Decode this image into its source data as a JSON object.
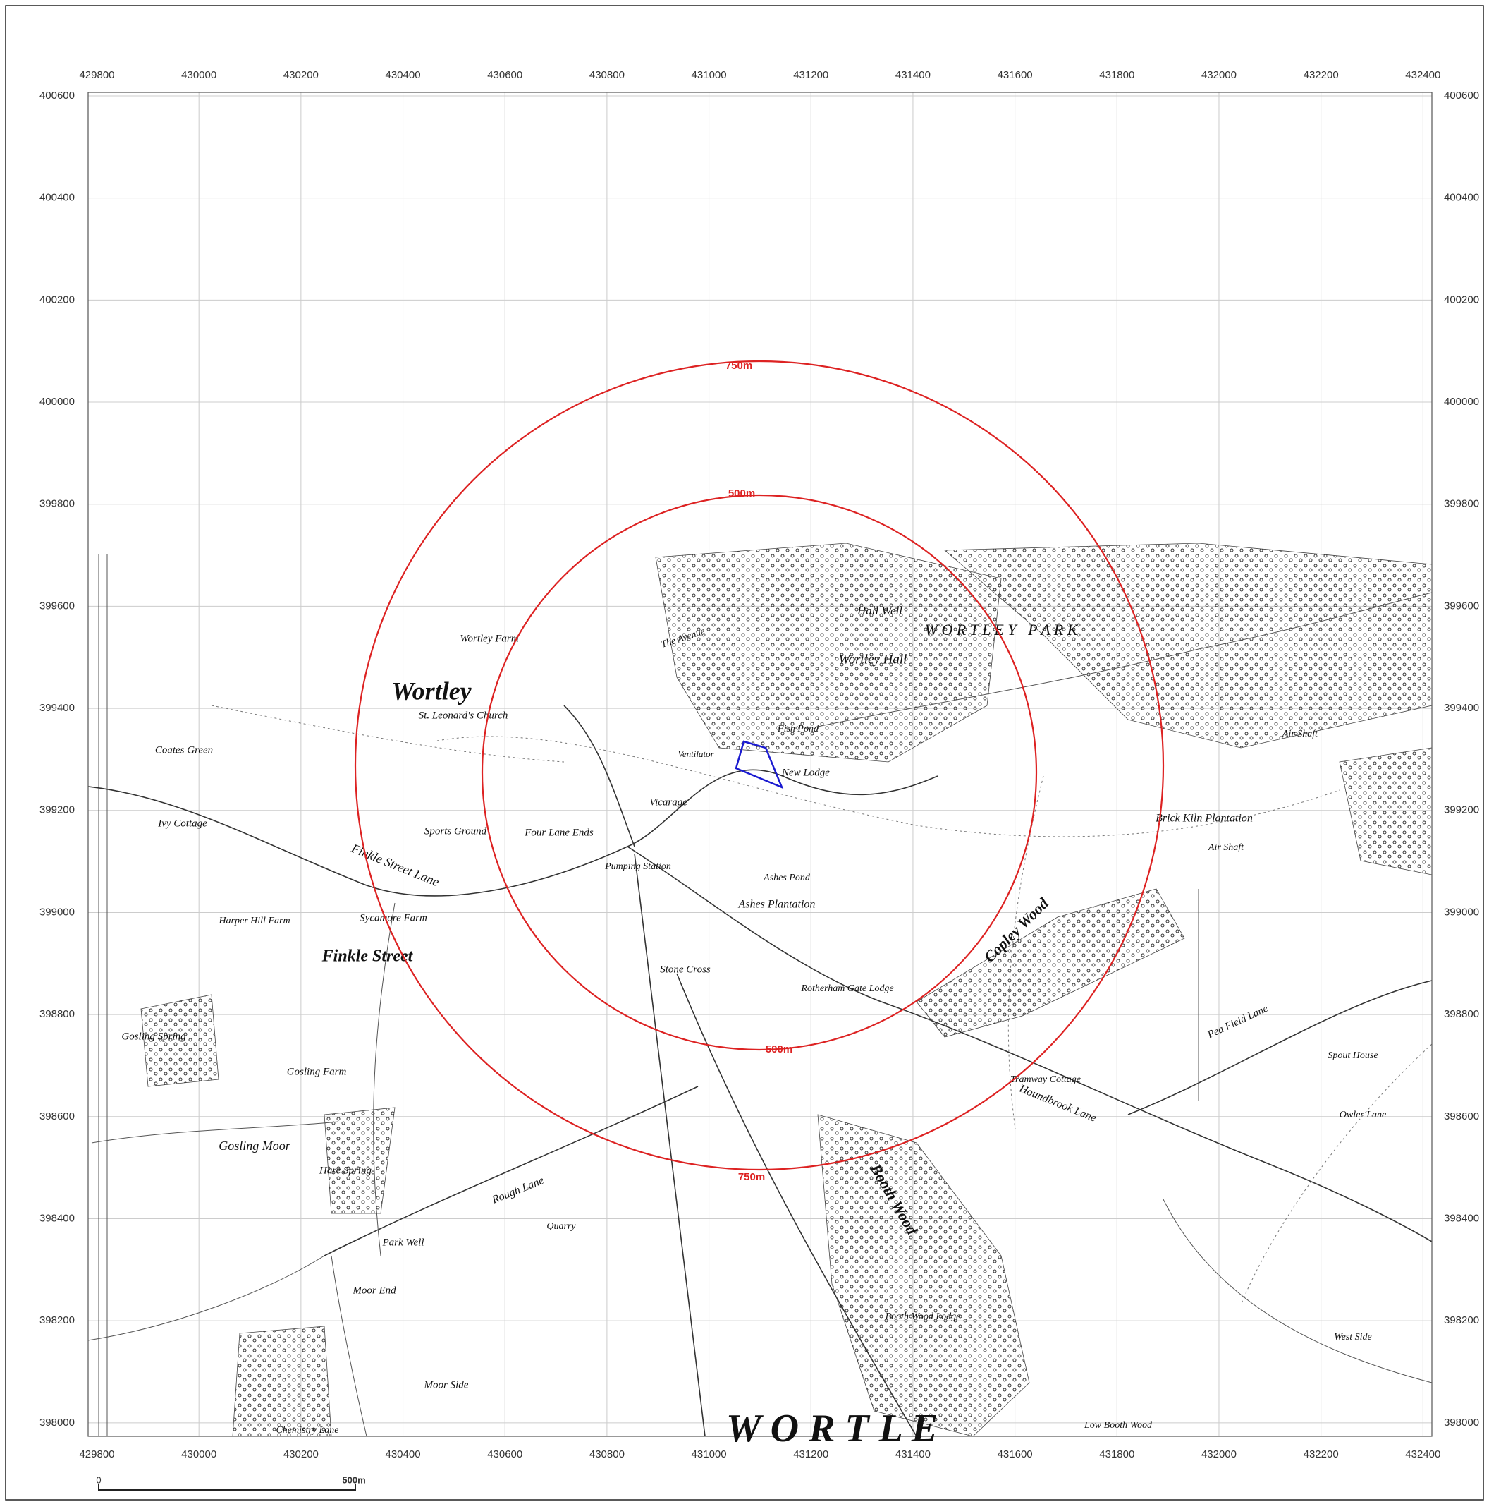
{
  "map": {
    "eastings": [
      429800,
      430000,
      430200,
      430400,
      430600,
      430800,
      431000,
      431200,
      431400,
      431600,
      431800,
      432000,
      432200,
      432400
    ],
    "northings": [
      400600,
      400400,
      400200,
      400000,
      399800,
      399600,
      399400,
      399200,
      399000,
      398800,
      398600,
      398400,
      398200,
      398000
    ],
    "buffer_labels": [
      "750m",
      "500m"
    ],
    "place_names": [
      "Wortley",
      "St. Leonard's Church",
      "Wortley Farm",
      "Hall Well",
      "Wortley Hall",
      "W O R T L E Y   P A R K",
      "Coates Green",
      "Ivy Cottage",
      "Finkle Street Lane",
      "Sports Ground",
      "Four Lane Ends",
      "Pumping Station",
      "Vicarage",
      "New Lodge",
      "Fish Pond",
      "Ashes Pond",
      "Ashes Plantation",
      "Sycamore Farm",
      "Harper Hill Farm",
      "Finkle Street",
      "Stone Cross",
      "Rotherham Gate Lodge",
      "Copley Wood",
      "Brick Kiln Plantation",
      "Air Shaft",
      "Air Shaft",
      "Gosling Spring",
      "Gosling Farm",
      "Gosling Moor",
      "Hare Spring",
      "Tramway Cottage",
      "Houndbrook Lane",
      "Pea Field Lane",
      "Spout House",
      "Owler Lane",
      "Booth Wood",
      "Rough Lane",
      "Quarry",
      "Park Well",
      "Moor End",
      "Booth Wood Lodge",
      "Moor Side",
      "Chemistry Lane",
      "West Side",
      "Low Booth Wood",
      "The Avenue",
      "Ventilator",
      "W O R T L E"
    ],
    "scale_bar": {
      "start": "0",
      "end": "500m"
    }
  }
}
